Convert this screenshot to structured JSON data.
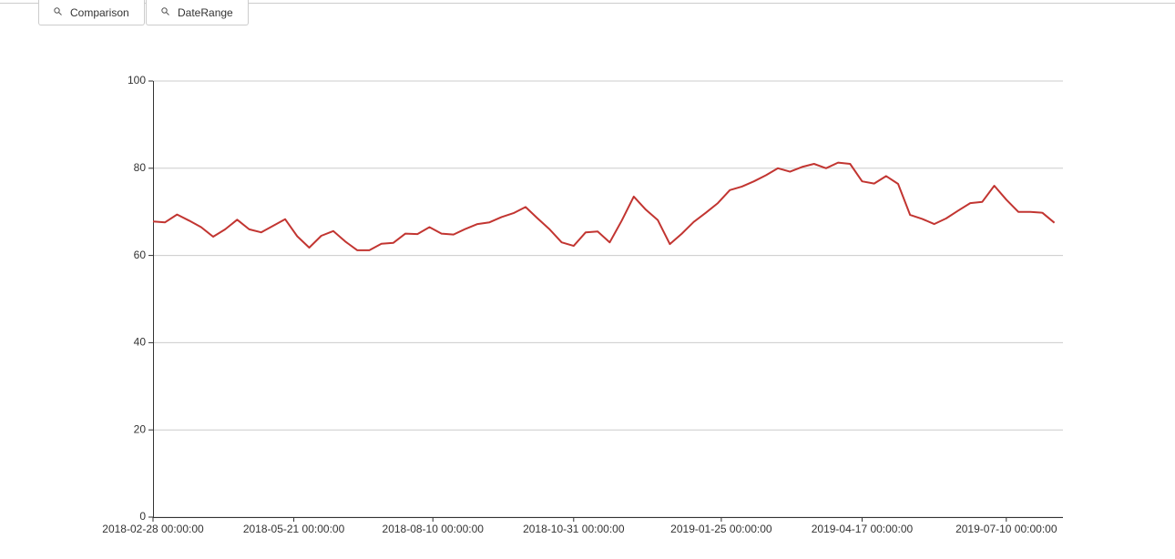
{
  "toolbar": {
    "buttons": [
      "Comparison",
      "DateRange"
    ]
  },
  "chart_data": {
    "type": "line",
    "x": [
      "2018-02-28 00:00:00",
      "2018-03-07 00:00:00",
      "2018-03-14 00:00:00",
      "2018-03-21 00:00:00",
      "2018-03-28 00:00:00",
      "2018-04-04 00:00:00",
      "2018-04-11 00:00:00",
      "2018-04-18 00:00:00",
      "2018-04-25 00:00:00",
      "2018-05-02 00:00:00",
      "2018-05-09 00:00:00",
      "2018-05-16 00:00:00",
      "2018-05-23 00:00:00",
      "2018-05-30 00:00:00",
      "2018-06-06 00:00:00",
      "2018-06-13 00:00:00",
      "2018-06-20 00:00:00",
      "2018-06-27 00:00:00",
      "2018-07-04 00:00:00",
      "2018-07-11 00:00:00",
      "2018-07-18 00:00:00",
      "2018-07-25 00:00:00",
      "2018-08-01 00:00:00",
      "2018-08-08 00:00:00",
      "2018-08-15 00:00:00",
      "2018-08-22 00:00:00",
      "2018-08-29 00:00:00",
      "2018-09-05 00:00:00",
      "2018-09-12 00:00:00",
      "2018-09-19 00:00:00",
      "2018-09-26 00:00:00",
      "2018-10-03 00:00:00",
      "2018-10-10 00:00:00",
      "2018-10-17 00:00:00",
      "2018-10-24 00:00:00",
      "2018-10-31 00:00:00",
      "2018-11-07 00:00:00",
      "2018-11-14 00:00:00",
      "2018-11-21 00:00:00",
      "2018-11-28 00:00:00",
      "2018-12-05 00:00:00",
      "2018-12-12 00:00:00",
      "2018-12-19 00:00:00",
      "2018-12-26 00:00:00",
      "2019-01-02 00:00:00",
      "2019-01-09 00:00:00",
      "2019-01-16 00:00:00",
      "2019-01-23 00:00:00",
      "2019-01-30 00:00:00",
      "2019-02-06 00:00:00",
      "2019-02-13 00:00:00",
      "2019-02-20 00:00:00",
      "2019-02-27 00:00:00",
      "2019-03-06 00:00:00",
      "2019-03-13 00:00:00",
      "2019-03-20 00:00:00",
      "2019-03-27 00:00:00",
      "2019-04-03 00:00:00",
      "2019-04-10 00:00:00",
      "2019-04-17 00:00:00",
      "2019-04-24 00:00:00",
      "2019-05-01 00:00:00",
      "2019-05-08 00:00:00",
      "2019-05-15 00:00:00",
      "2019-05-22 00:00:00",
      "2019-05-29 00:00:00",
      "2019-06-05 00:00:00",
      "2019-06-12 00:00:00",
      "2019-06-19 00:00:00",
      "2019-06-26 00:00:00",
      "2019-07-03 00:00:00",
      "2019-07-10 00:00:00",
      "2019-07-17 00:00:00",
      "2019-07-24 00:00:00",
      "2019-07-31 00:00:00",
      "2019-08-07 00:00:00"
    ],
    "values": [
      67.8,
      67.6,
      69.4,
      68,
      66.5,
      64.3,
      66,
      68.2,
      66,
      65.3,
      66.8,
      68.3,
      64.4,
      61.8,
      64.5,
      65.6,
      63.2,
      61.2,
      61.2,
      62.7,
      62.9,
      65,
      64.9,
      66.5,
      65,
      64.8,
      66.1,
      67.2,
      67.6,
      68.8,
      69.7,
      71.1,
      68.5,
      66,
      63,
      62.2,
      65.3,
      65.5,
      63,
      68,
      73.5,
      70.5,
      68.1,
      62.6,
      65,
      67.7,
      69.8,
      72,
      75,
      75.8,
      77,
      78.4,
      80,
      79.2,
      80.3,
      81,
      80,
      81.3,
      81,
      77,
      76.5,
      78.2,
      76.4,
      69.3,
      68.4,
      67.2,
      68.5,
      70.3,
      72,
      72.3,
      76,
      72.8,
      70,
      70,
      69.8,
      67.5
    ],
    "color": "#c23531",
    "xlim": [
      "2018-02-28 00:00:00",
      "2019-08-12 00:00:00"
    ],
    "xticks": [
      "2018-02-28 00:00:00",
      "2018-05-21 00:00:00",
      "2018-08-10 00:00:00",
      "2018-10-31 00:00:00",
      "2019-01-25 00:00:00",
      "2019-04-17 00:00:00",
      "2019-07-10 00:00:00"
    ],
    "ylim": [
      0,
      100
    ],
    "yticks": [
      0,
      20,
      40,
      60,
      80,
      100
    ],
    "grid": true
  }
}
